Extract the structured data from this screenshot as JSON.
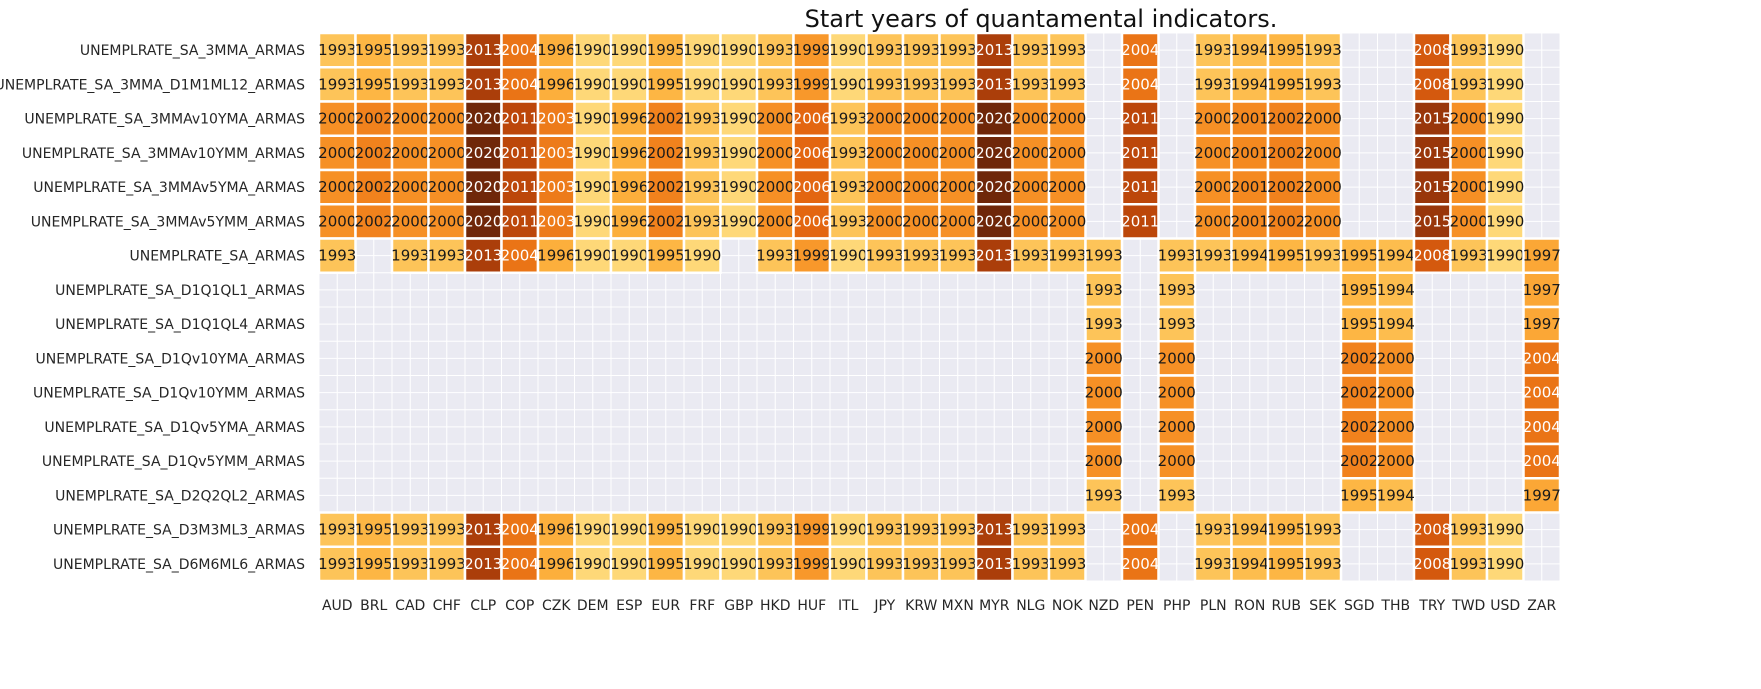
{
  "chart_data": {
    "type": "heatmap",
    "title": "Start years of quantamental indicators.",
    "xlabel": "",
    "ylabel": "",
    "columns": [
      "AUD",
      "BRL",
      "CAD",
      "CHF",
      "CLP",
      "COP",
      "CZK",
      "DEM",
      "ESP",
      "EUR",
      "FRF",
      "GBP",
      "HKD",
      "HUF",
      "ITL",
      "JPY",
      "KRW",
      "MXN",
      "MYR",
      "NLG",
      "NOK",
      "NZD",
      "PEN",
      "PHP",
      "PLN",
      "RON",
      "RUB",
      "SEK",
      "SGD",
      "THB",
      "TRY",
      "TWD",
      "USD",
      "ZAR"
    ],
    "rows": [
      {
        "label": "UNEMPLRATE_SA_3MMA_ARMAS",
        "values": [
          1993,
          1995,
          1993,
          1993,
          2013,
          2004,
          1996,
          1990,
          1990,
          1995,
          1990,
          1990,
          1993,
          1999,
          1990,
          1993,
          1993,
          1993,
          2013,
          1993,
          1993,
          null,
          2004,
          null,
          1993,
          1994,
          1995,
          1993,
          null,
          null,
          2008,
          1993,
          1990,
          null
        ]
      },
      {
        "label": "UNEMPLRATE_SA_3MMA_D1M1ML12_ARMAS",
        "values": [
          1993,
          1995,
          1993,
          1993,
          2013,
          2004,
          1996,
          1990,
          1990,
          1995,
          1990,
          1990,
          1993,
          1999,
          1990,
          1993,
          1993,
          1993,
          2013,
          1993,
          1993,
          null,
          2004,
          null,
          1993,
          1994,
          1995,
          1993,
          null,
          null,
          2008,
          1993,
          1990,
          null
        ]
      },
      {
        "label": "UNEMPLRATE_SA_3MMAv10YMA_ARMAS",
        "values": [
          2000,
          2002,
          2000,
          2000,
          2020,
          2011,
          2003,
          1990,
          1996,
          2002,
          1993,
          1990,
          2000,
          2006,
          1993,
          2000,
          2000,
          2000,
          2020,
          2000,
          2000,
          null,
          2011,
          null,
          2000,
          2001,
          2002,
          2000,
          null,
          null,
          2015,
          2000,
          1990,
          null
        ]
      },
      {
        "label": "UNEMPLRATE_SA_3MMAv10YMM_ARMAS",
        "values": [
          2000,
          2002,
          2000,
          2000,
          2020,
          2011,
          2003,
          1990,
          1996,
          2002,
          1993,
          1990,
          2000,
          2006,
          1993,
          2000,
          2000,
          2000,
          2020,
          2000,
          2000,
          null,
          2011,
          null,
          2000,
          2001,
          2002,
          2000,
          null,
          null,
          2015,
          2000,
          1990,
          null
        ]
      },
      {
        "label": "UNEMPLRATE_SA_3MMAv5YMA_ARMAS",
        "values": [
          2000,
          2002,
          2000,
          2000,
          2020,
          2011,
          2003,
          1990,
          1996,
          2002,
          1993,
          1990,
          2000,
          2006,
          1993,
          2000,
          2000,
          2000,
          2020,
          2000,
          2000,
          null,
          2011,
          null,
          2000,
          2001,
          2002,
          2000,
          null,
          null,
          2015,
          2000,
          1990,
          null
        ]
      },
      {
        "label": "UNEMPLRATE_SA_3MMAv5YMM_ARMAS",
        "values": [
          2000,
          2002,
          2000,
          2000,
          2020,
          2011,
          2003,
          1990,
          1996,
          2002,
          1993,
          1990,
          2000,
          2006,
          1993,
          2000,
          2000,
          2000,
          2020,
          2000,
          2000,
          null,
          2011,
          null,
          2000,
          2001,
          2002,
          2000,
          null,
          null,
          2015,
          2000,
          1990,
          null
        ]
      },
      {
        "label": "UNEMPLRATE_SA_ARMAS",
        "values": [
          1993,
          null,
          1993,
          1993,
          2013,
          2004,
          1996,
          1990,
          1990,
          1995,
          1990,
          null,
          1993,
          1999,
          1990,
          1993,
          1993,
          1993,
          2013,
          1993,
          1993,
          1993,
          null,
          1993,
          1993,
          1994,
          1995,
          1993,
          1995,
          1994,
          2008,
          1993,
          1990,
          1997
        ]
      },
      {
        "label": "UNEMPLRATE_SA_D1Q1QL1_ARMAS",
        "values": [
          null,
          null,
          null,
          null,
          null,
          null,
          null,
          null,
          null,
          null,
          null,
          null,
          null,
          null,
          null,
          null,
          null,
          null,
          null,
          null,
          null,
          1993,
          null,
          1993,
          null,
          null,
          null,
          null,
          1995,
          1994,
          null,
          null,
          null,
          1997
        ]
      },
      {
        "label": "UNEMPLRATE_SA_D1Q1QL4_ARMAS",
        "values": [
          null,
          null,
          null,
          null,
          null,
          null,
          null,
          null,
          null,
          null,
          null,
          null,
          null,
          null,
          null,
          null,
          null,
          null,
          null,
          null,
          null,
          1993,
          null,
          1993,
          null,
          null,
          null,
          null,
          1995,
          1994,
          null,
          null,
          null,
          1997
        ]
      },
      {
        "label": "UNEMPLRATE_SA_D1Qv10YMA_ARMAS",
        "values": [
          null,
          null,
          null,
          null,
          null,
          null,
          null,
          null,
          null,
          null,
          null,
          null,
          null,
          null,
          null,
          null,
          null,
          null,
          null,
          null,
          null,
          2000,
          null,
          2000,
          null,
          null,
          null,
          null,
          2002,
          2000,
          null,
          null,
          null,
          2004
        ]
      },
      {
        "label": "UNEMPLRATE_SA_D1Qv10YMM_ARMAS",
        "values": [
          null,
          null,
          null,
          null,
          null,
          null,
          null,
          null,
          null,
          null,
          null,
          null,
          null,
          null,
          null,
          null,
          null,
          null,
          null,
          null,
          null,
          2000,
          null,
          2000,
          null,
          null,
          null,
          null,
          2002,
          2000,
          null,
          null,
          null,
          2004
        ]
      },
      {
        "label": "UNEMPLRATE_SA_D1Qv5YMA_ARMAS",
        "values": [
          null,
          null,
          null,
          null,
          null,
          null,
          null,
          null,
          null,
          null,
          null,
          null,
          null,
          null,
          null,
          null,
          null,
          null,
          null,
          null,
          null,
          2000,
          null,
          2000,
          null,
          null,
          null,
          null,
          2002,
          2000,
          null,
          null,
          null,
          2004
        ]
      },
      {
        "label": "UNEMPLRATE_SA_D1Qv5YMM_ARMAS",
        "values": [
          null,
          null,
          null,
          null,
          null,
          null,
          null,
          null,
          null,
          null,
          null,
          null,
          null,
          null,
          null,
          null,
          null,
          null,
          null,
          null,
          null,
          2000,
          null,
          2000,
          null,
          null,
          null,
          null,
          2002,
          2000,
          null,
          null,
          null,
          2004
        ]
      },
      {
        "label": "UNEMPLRATE_SA_D2Q2QL2_ARMAS",
        "values": [
          null,
          null,
          null,
          null,
          null,
          null,
          null,
          null,
          null,
          null,
          null,
          null,
          null,
          null,
          null,
          null,
          null,
          null,
          null,
          null,
          null,
          1993,
          null,
          1993,
          null,
          null,
          null,
          null,
          1995,
          1994,
          null,
          null,
          null,
          1997
        ]
      },
      {
        "label": "UNEMPLRATE_SA_D3M3ML3_ARMAS",
        "values": [
          1993,
          1995,
          1993,
          1993,
          2013,
          2004,
          1996,
          1990,
          1990,
          1995,
          1990,
          1990,
          1993,
          1999,
          1990,
          1993,
          1993,
          1993,
          2013,
          1993,
          1993,
          null,
          2004,
          null,
          1993,
          1994,
          1995,
          1993,
          null,
          null,
          2008,
          1993,
          1990,
          null
        ]
      },
      {
        "label": "UNEMPLRATE_SA_D6M6ML6_ARMAS",
        "values": [
          1993,
          1995,
          1993,
          1993,
          2013,
          2004,
          1996,
          1990,
          1990,
          1995,
          1990,
          1990,
          1993,
          1999,
          1990,
          1993,
          1993,
          1993,
          2013,
          1993,
          1993,
          null,
          2004,
          null,
          1993,
          1994,
          1995,
          1993,
          null,
          null,
          2008,
          1993,
          1990,
          null
        ]
      }
    ],
    "colormap": "YlOrBr",
    "value_range": [
      1985,
      2022
    ],
    "grid": true,
    "colors": {
      "background": "#eaeaf2",
      "grid": "#ffffff",
      "text_dark": "#1a1a1a",
      "text_light": "#ffffff",
      "ramp": [
        "#fff0b3",
        "#fed775",
        "#fdb23e",
        "#f58a20",
        "#e26510",
        "#b9440a",
        "#8a2f0a",
        "#5e2208"
      ]
    }
  }
}
